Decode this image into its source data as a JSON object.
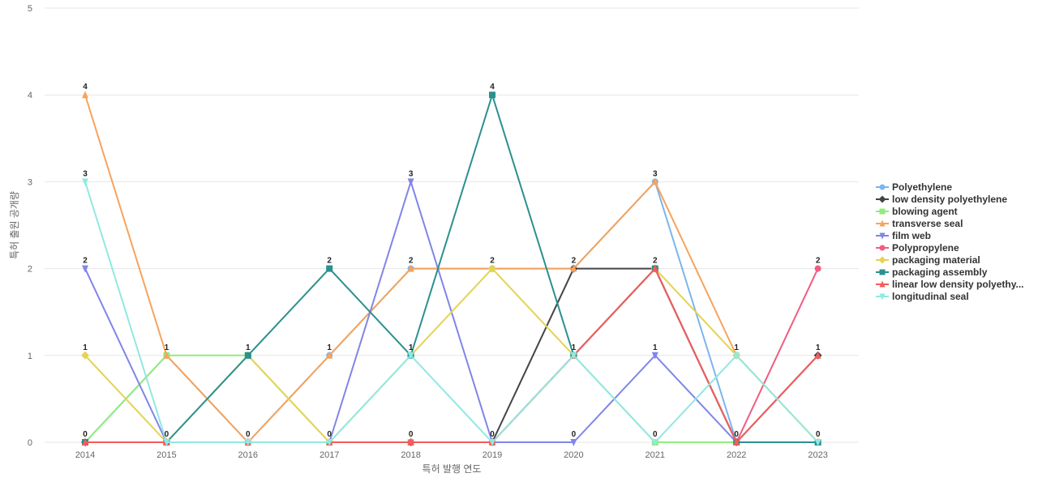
{
  "chart_data": {
    "type": "line",
    "xlabel": "특허 발행 연도",
    "ylabel": "특허 출원 공개량",
    "ylim": [
      0,
      5
    ],
    "yticks": [
      0,
      1,
      2,
      3,
      4,
      5
    ],
    "grid": true,
    "legend_position": "right",
    "x": [
      "2014",
      "2015",
      "2016",
      "2017",
      "2018",
      "2019",
      "2020",
      "2021",
      "2022",
      "2023"
    ],
    "series": [
      {
        "name": "Polyethylene",
        "color": "#7cb5ec",
        "marker": "circle",
        "values": [
          0,
          1,
          0,
          1,
          2,
          2,
          2,
          3,
          0,
          0
        ]
      },
      {
        "name": "low density polyethylene",
        "color": "#434348",
        "marker": "diamond",
        "values": [
          0,
          0,
          0,
          0,
          0,
          0,
          2,
          2,
          0,
          1
        ]
      },
      {
        "name": "blowing agent",
        "color": "#90ed7d",
        "marker": "square",
        "values": [
          0,
          1,
          1,
          0,
          0,
          0,
          1,
          0,
          0,
          0
        ]
      },
      {
        "name": "transverse seal",
        "color": "#f7a35c",
        "marker": "triangle",
        "values": [
          4,
          1,
          0,
          1,
          2,
          2,
          2,
          3,
          1,
          0
        ]
      },
      {
        "name": "film web",
        "color": "#8085e9",
        "marker": "triangle-down",
        "values": [
          2,
          0,
          0,
          0,
          3,
          0,
          0,
          1,
          0,
          0
        ]
      },
      {
        "name": "Polypropylene",
        "color": "#f15c80",
        "marker": "circle",
        "values": [
          0,
          0,
          0,
          0,
          0,
          0,
          1,
          2,
          0,
          2
        ]
      },
      {
        "name": "packaging material",
        "color": "#e4d354",
        "marker": "diamond",
        "values": [
          1,
          0,
          1,
          0,
          1,
          2,
          1,
          2,
          1,
          0
        ]
      },
      {
        "name": "packaging assembly",
        "color": "#2b908f",
        "marker": "square",
        "values": [
          0,
          0,
          1,
          2,
          1,
          4,
          1,
          2,
          0,
          0
        ]
      },
      {
        "name": "linear low density polyethy...",
        "color": "#f45b5b",
        "marker": "triangle",
        "values": [
          0,
          0,
          0,
          0,
          0,
          0,
          1,
          2,
          0,
          1
        ]
      },
      {
        "name": "longitudinal seal",
        "color": "#91e8e1",
        "marker": "triangle-down",
        "values": [
          3,
          0,
          0,
          0,
          1,
          0,
          1,
          0,
          1,
          0
        ]
      }
    ],
    "data_labels": [
      {
        "x": "2014",
        "value": 4
      },
      {
        "x": "2014",
        "value": 3
      },
      {
        "x": "2014",
        "value": 2
      },
      {
        "x": "2014",
        "value": 1
      },
      {
        "x": "2014",
        "value": 0
      },
      {
        "x": "2015",
        "value": 1
      },
      {
        "x": "2015",
        "value": 0
      },
      {
        "x": "2016",
        "value": 1
      },
      {
        "x": "2016",
        "value": 0
      },
      {
        "x": "2017",
        "value": 2
      },
      {
        "x": "2017",
        "value": 1
      },
      {
        "x": "2017",
        "value": 0
      },
      {
        "x": "2018",
        "value": 3
      },
      {
        "x": "2018",
        "value": 2
      },
      {
        "x": "2018",
        "value": 1
      },
      {
        "x": "2018",
        "value": 0
      },
      {
        "x": "2019",
        "value": 4
      },
      {
        "x": "2019",
        "value": 2
      },
      {
        "x": "2019",
        "value": 0
      },
      {
        "x": "2020",
        "value": 2
      },
      {
        "x": "2020",
        "value": 1
      },
      {
        "x": "2020",
        "value": 0
      },
      {
        "x": "2021",
        "value": 3
      },
      {
        "x": "2021",
        "value": 2
      },
      {
        "x": "2021",
        "value": 1
      },
      {
        "x": "2021",
        "value": 0
      },
      {
        "x": "2022",
        "value": 1
      },
      {
        "x": "2022",
        "value": 0
      },
      {
        "x": "2023",
        "value": 2
      },
      {
        "x": "2023",
        "value": 1
      },
      {
        "x": "2023",
        "value": 0
      }
    ]
  }
}
